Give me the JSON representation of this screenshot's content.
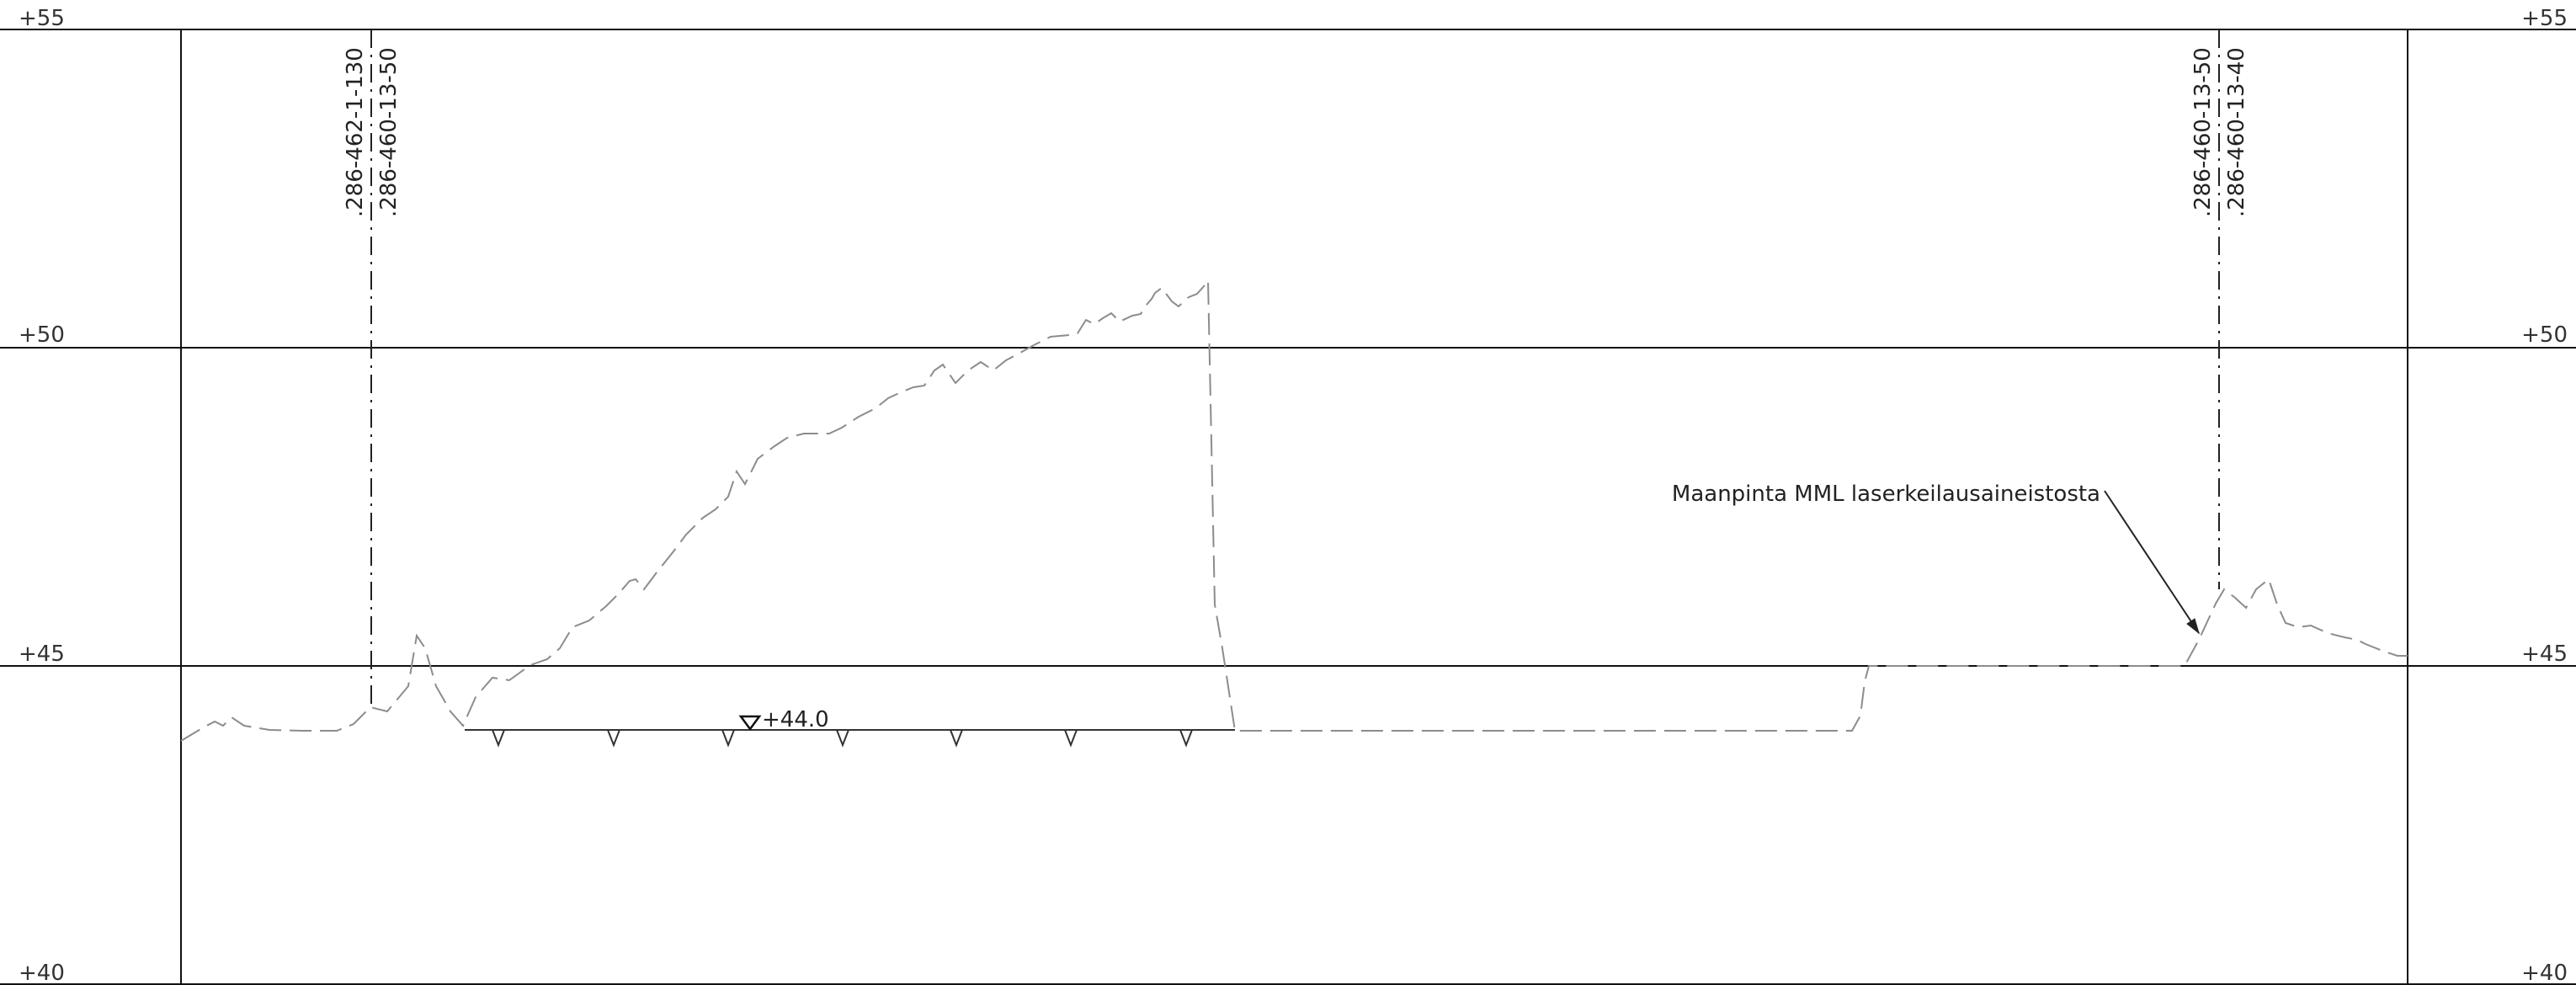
{
  "levels": {
    "l55": "+55",
    "l50": "+50",
    "l45": "+45",
    "l40": "+40"
  },
  "boundaries": [
    {
      "line1": ".286-462-1-130",
      "line2": ".286-460-13-50"
    },
    {
      "line1": ".286-460-13-50",
      "line2": ".286-460-13-40"
    }
  ],
  "water_level": {
    "label": "+44.0"
  },
  "annotations": {
    "ground_surface": "Maanpinta MML laserkeilausaineistosta"
  },
  "colors": {
    "frame": "#111111",
    "ground": "#8c8c8c",
    "water": "#333333"
  }
}
